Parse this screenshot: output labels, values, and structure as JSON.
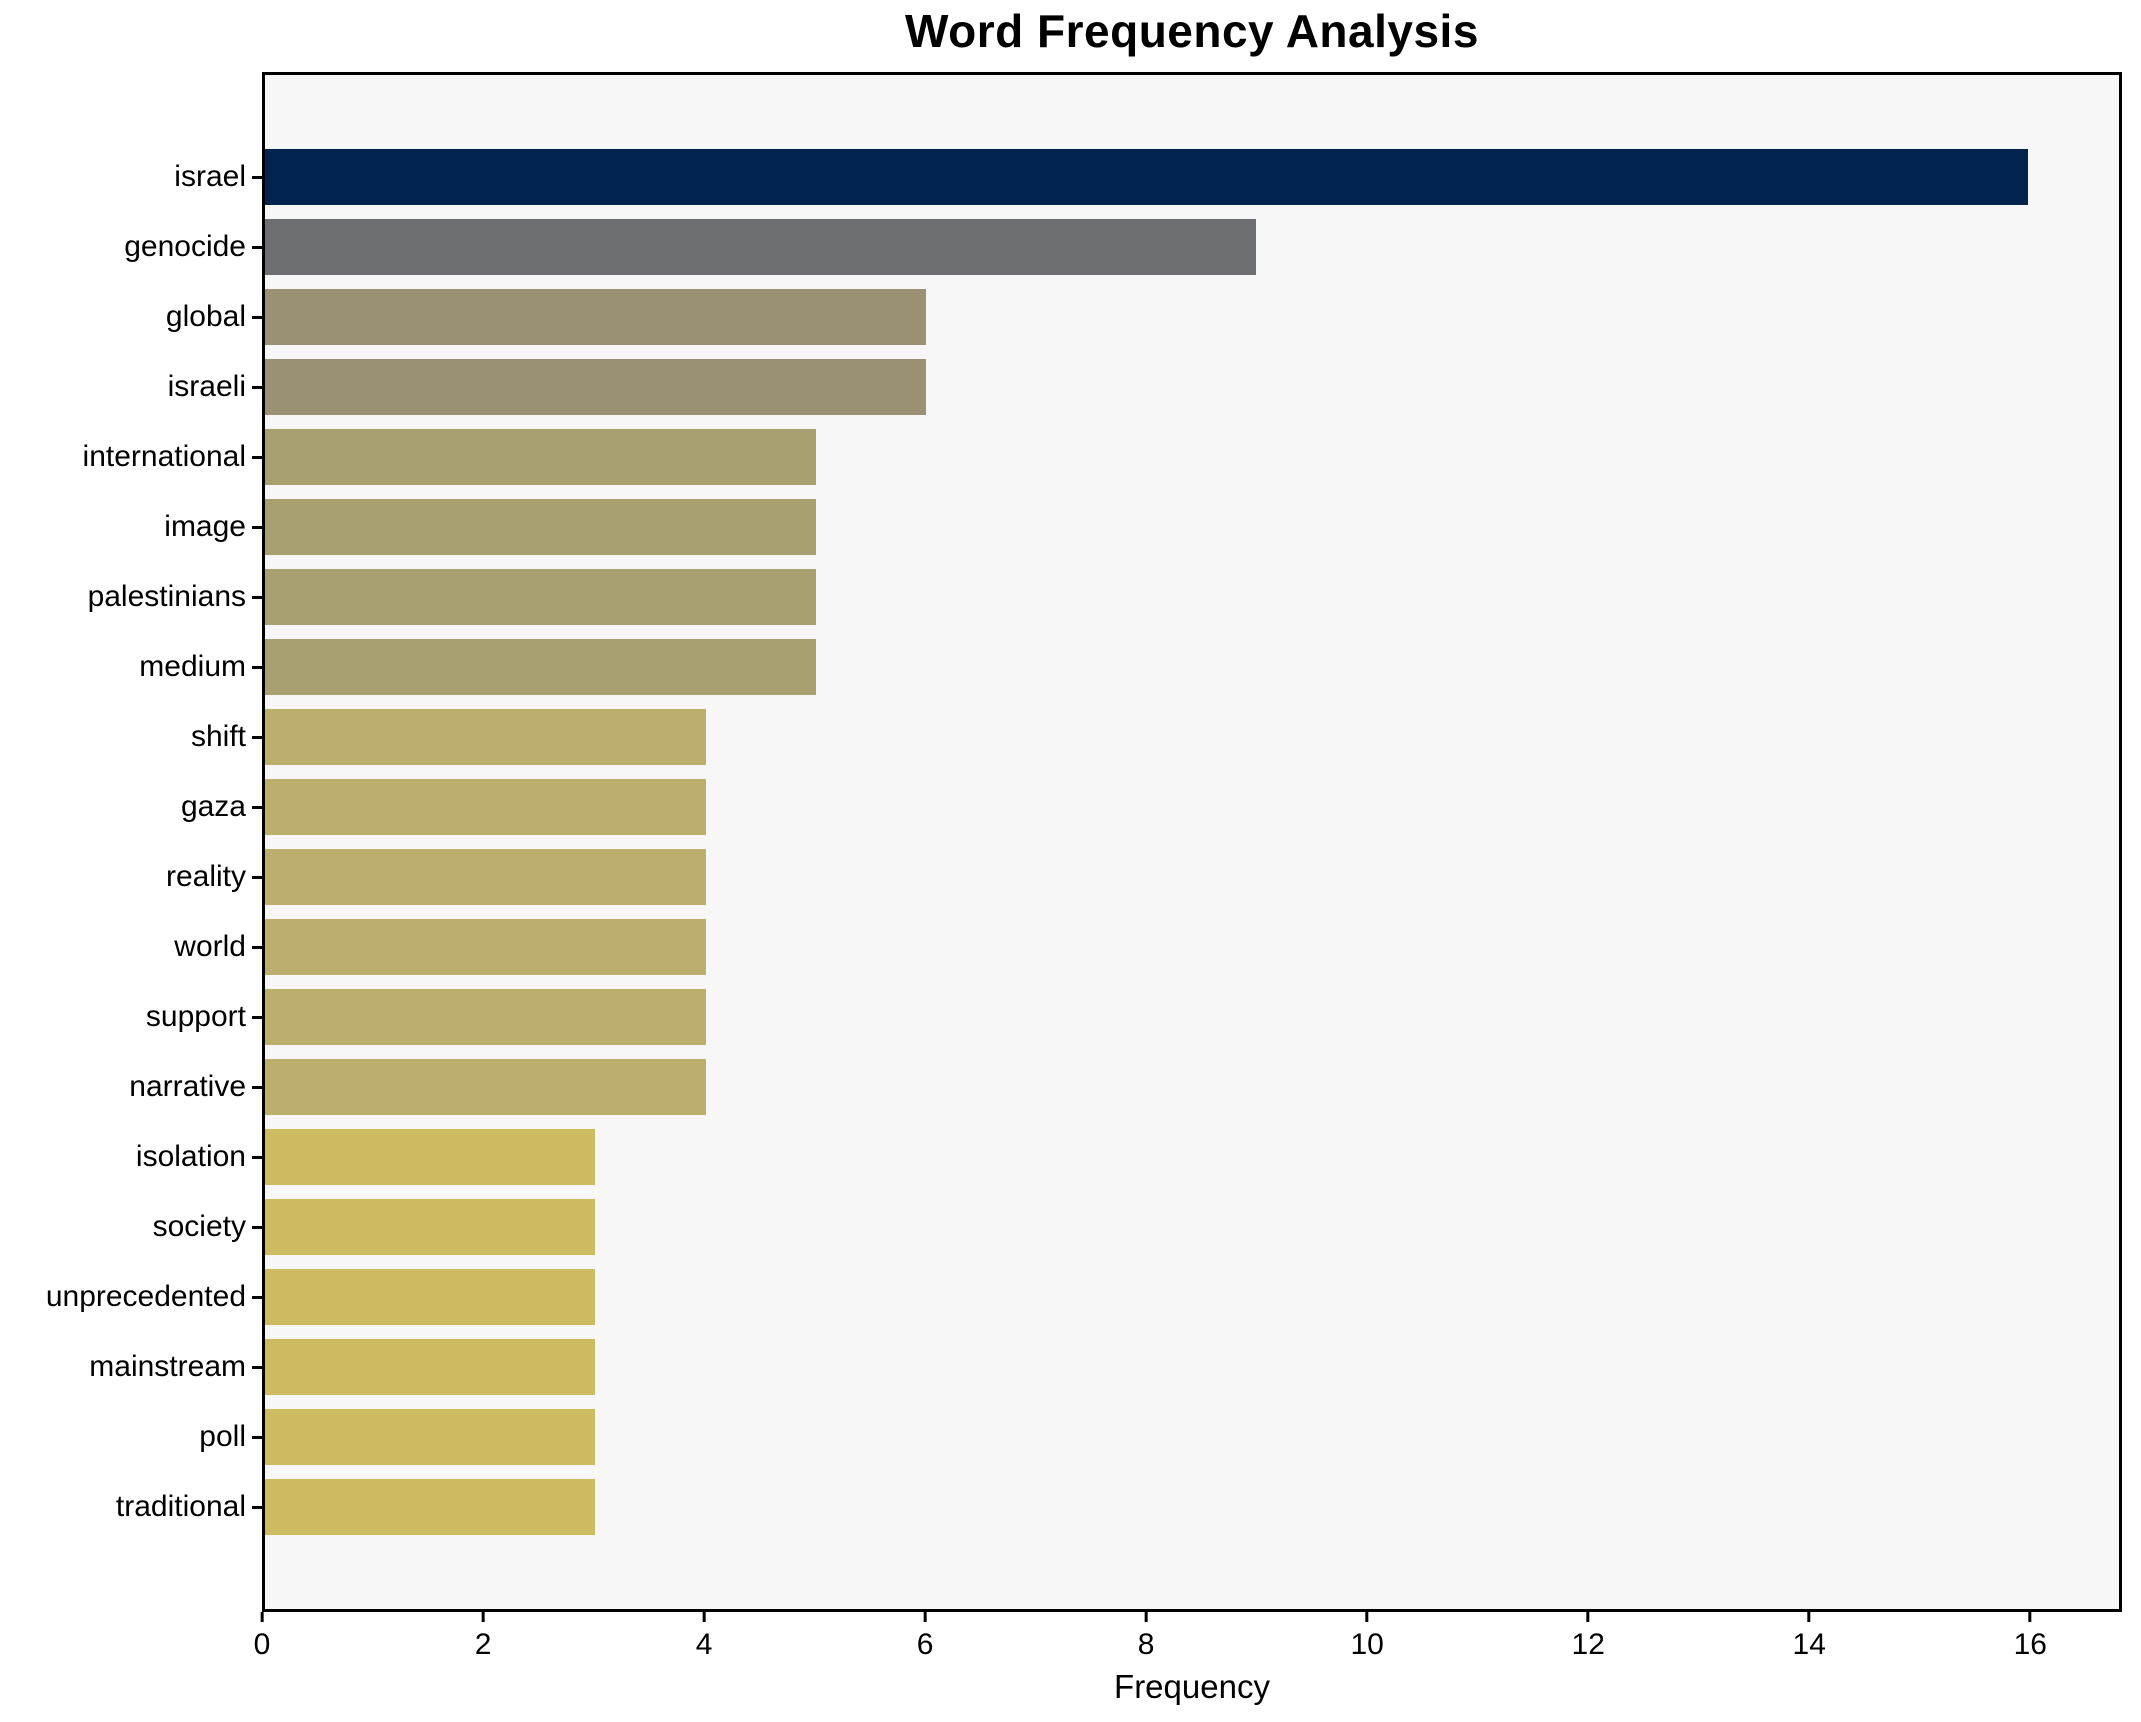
{
  "chart_data": {
    "type": "bar",
    "orientation": "horizontal",
    "title": "Word Frequency Analysis",
    "xlabel": "Frequency",
    "ylabel": "",
    "categories": [
      "israel",
      "genocide",
      "global",
      "israeli",
      "international",
      "image",
      "palestinians",
      "medium",
      "shift",
      "gaza",
      "reality",
      "world",
      "support",
      "narrative",
      "isolation",
      "society",
      "unprecedented",
      "mainstream",
      "poll",
      "traditional"
    ],
    "values": [
      16,
      9,
      6,
      6,
      5,
      5,
      5,
      5,
      4,
      4,
      4,
      4,
      4,
      4,
      3,
      3,
      3,
      3,
      3,
      3
    ],
    "bar_colors": [
      "#02234e",
      "#6d6e71",
      "#9a9172",
      "#9a9172",
      "#a9a071",
      "#a9a071",
      "#a9a071",
      "#a9a071",
      "#bcae6d",
      "#bcae6d",
      "#bcae6d",
      "#bcae6d",
      "#bcae6d",
      "#bcae6d",
      "#cdbb62",
      "#cdbb62",
      "#cdbb62",
      "#cdbb62",
      "#cdbb62",
      "#cdbb62"
    ],
    "xlim": [
      0,
      16.83
    ],
    "x_ticks": [
      0,
      2,
      4,
      6,
      8,
      10,
      12,
      14,
      16
    ],
    "grid": false,
    "legend": null,
    "plot_background": "#f7f7f8",
    "figure_background": "#ffffff",
    "spine_color": "#000000"
  }
}
